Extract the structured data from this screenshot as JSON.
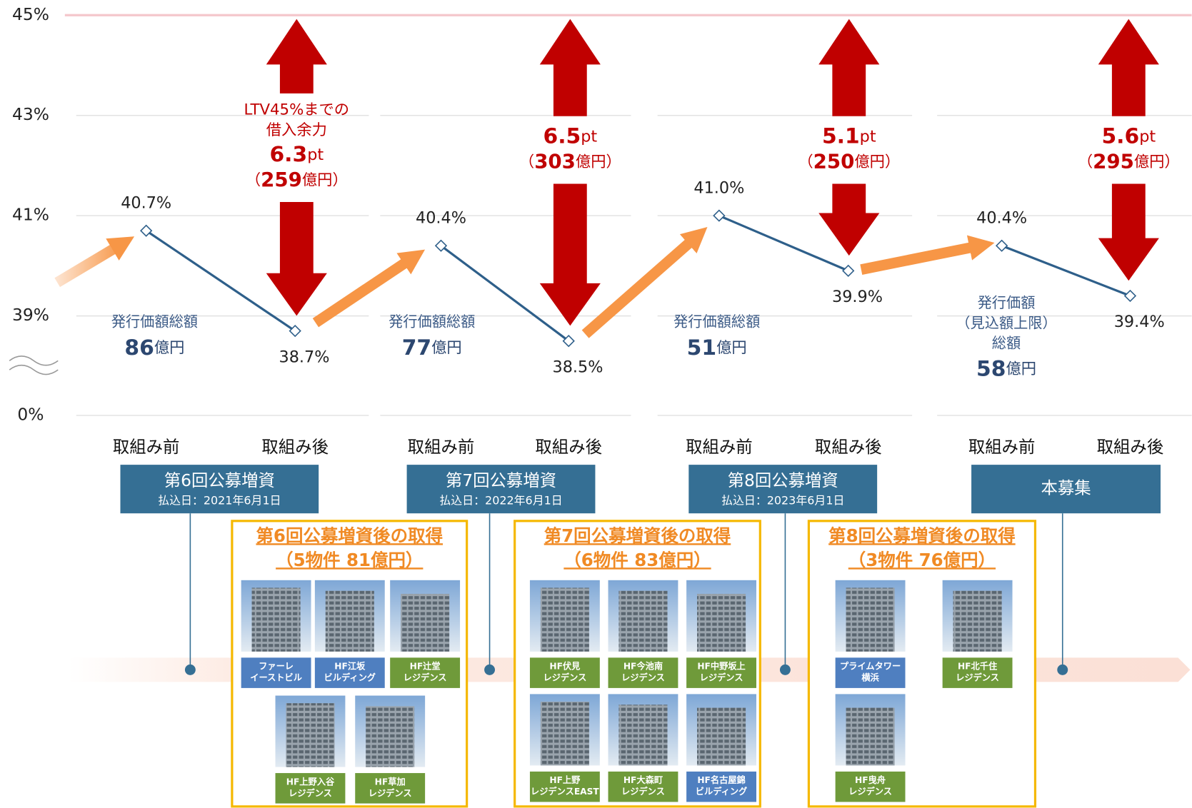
{
  "chart_data": {
    "type": "line",
    "ylim": [
      38,
      45
    ],
    "axis_break": true,
    "yticks": [
      {
        "value": 0,
        "label": "0%"
      },
      {
        "value": 39,
        "label": "39%"
      },
      {
        "value": 41,
        "label": "41%"
      },
      {
        "value": 43,
        "label": "43%"
      },
      {
        "value": 45,
        "label": "45%"
      }
    ],
    "categories": [
      "取組み前",
      "取組み後",
      "取組み前",
      "取組み後",
      "取組み前",
      "取組み後",
      "取組み前",
      "取組み後"
    ],
    "series": [
      {
        "color": "#2e5f8a",
        "values": [
          40.7,
          38.7,
          40.4,
          38.5,
          41.0,
          39.9,
          40.4,
          39.4
        ],
        "value_labels": [
          "40.7%",
          "38.7%",
          "40.4%",
          "38.5%",
          "41.0%",
          "39.9%",
          "40.4%",
          "39.4%"
        ]
      }
    ],
    "limit_color": "#f4c7cc",
    "arrow_color": "#c00000",
    "paren": [
      "（",
      "）"
    ],
    "headroom": [
      {
        "note": [
          "LTV45%までの",
          "借入余力"
        ],
        "pt": 6.3,
        "unit": "pt",
        "amount": 259,
        "amount_unit": "億円"
      },
      {
        "pt": 6.5,
        "unit": "pt",
        "amount": 303,
        "amount_unit": "億円"
      },
      {
        "pt": 5.1,
        "unit": "pt",
        "amount": 250,
        "amount_unit": "億円"
      },
      {
        "pt": 5.6,
        "unit": "pt",
        "amount": 295,
        "amount_unit": "億円"
      }
    ]
  },
  "offerings": [
    {
      "title": "第6回公募増資",
      "date": "払込日：2021年6月1日",
      "amount_label": [
        "発行価額総額"
      ],
      "amount": 86,
      "unit": "億円"
    },
    {
      "title": "第7回公募増資",
      "date": "払込日：2022年6月1日",
      "amount_label": [
        "発行価額総額"
      ],
      "amount": 77,
      "unit": "億円"
    },
    {
      "title": "第8回公募増資",
      "date": "払込日：2023年6月1日",
      "amount_label": [
        "発行価額総額"
      ],
      "amount": 51,
      "unit": "億円"
    },
    {
      "title": "本募集",
      "amount_label": [
        "発行価額",
        "（見込額上限）",
        "総額"
      ],
      "amount": 58,
      "unit": "億円"
    }
  ],
  "acquisitions": [
    {
      "title": "第6回公募増資後の取得",
      "subtitle": "（5物件 81億円）",
      "properties": [
        {
          "name": [
            "ファーレ",
            "イーストビル"
          ],
          "kind": "office"
        },
        {
          "name": [
            "HF江坂",
            "ビルディング"
          ],
          "kind": "office"
        },
        {
          "name": [
            "HF辻堂",
            "レジデンス"
          ],
          "kind": "residence"
        },
        {
          "name": [
            "HF上野入谷",
            "レジデンス"
          ],
          "kind": "residence"
        },
        {
          "name": [
            "HF草加",
            "レジデンス"
          ],
          "kind": "residence"
        }
      ]
    },
    {
      "title": "第7回公募増資後の取得",
      "subtitle": "（6物件 83億円）",
      "properties": [
        {
          "name": [
            "HF伏見",
            "レジデンス"
          ],
          "kind": "residence"
        },
        {
          "name": [
            "HF今池南",
            "レジデンス"
          ],
          "kind": "residence"
        },
        {
          "name": [
            "HF中野坂上",
            "レジデンス"
          ],
          "kind": "residence"
        },
        {
          "name": [
            "HF上野",
            "レジデンスEAST"
          ],
          "kind": "residence"
        },
        {
          "name": [
            "HF大森町",
            "レジデンス"
          ],
          "kind": "residence"
        },
        {
          "name": [
            "HF名古屋錦",
            "ビルディング"
          ],
          "kind": "office"
        }
      ]
    },
    {
      "title": "第8回公募増資後の取得",
      "subtitle": "（3物件 76億円）",
      "properties": [
        {
          "name": [
            "プライムタワー",
            "横浜"
          ],
          "kind": "office"
        },
        {
          "name": [
            "HF北千住",
            "レジデンス"
          ],
          "kind": "residence"
        },
        {
          "name": [
            "HF曳舟",
            "レジデンス"
          ],
          "kind": "residence"
        }
      ]
    }
  ]
}
